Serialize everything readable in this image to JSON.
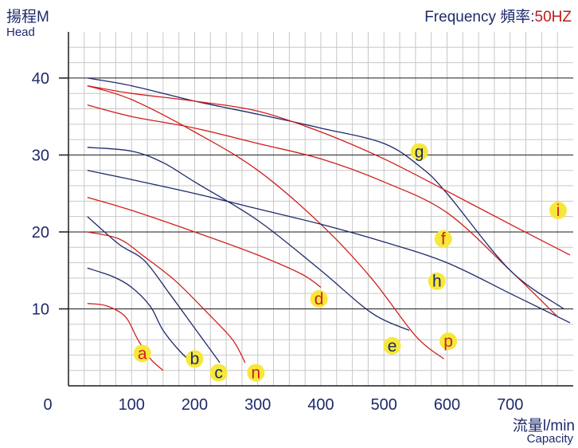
{
  "header": {
    "y_title_cn": "揚程M",
    "y_title_en": "Head",
    "frequency_label": "Frequency 頻率:",
    "frequency_value": "50HZ",
    "x_title_cn": "流量l/min",
    "x_title_en": "Capacity"
  },
  "colors": {
    "navy": "#1e2a6b",
    "red": "#d11f1f",
    "grid": "#c7c7c7",
    "major_grid": "#1b1b1b",
    "label_fill": "#f6e83a"
  },
  "chart_data": {
    "type": "line",
    "title": "",
    "xlabel": "流量l/min Capacity",
    "ylabel": "揚程M Head",
    "xlim": [
      0,
      800
    ],
    "ylim": [
      0,
      46
    ],
    "x_ticks": [
      0,
      100,
      200,
      300,
      400,
      500,
      600,
      700
    ],
    "y_ticks": [
      10,
      20,
      30,
      40
    ],
    "grid": true,
    "minor_grid_step": [
      25,
      2
    ],
    "series": [
      {
        "name": "a",
        "color": "#d11f1f",
        "points": [
          [
            30,
            10.7
          ],
          [
            60,
            10.4
          ],
          [
            90,
            9
          ],
          [
            110,
            6
          ],
          [
            130,
            3.5
          ],
          [
            150,
            2
          ]
        ],
        "label_at": [
          117,
          4.2
        ]
      },
      {
        "name": "b",
        "color": "#1e2a6b",
        "points": [
          [
            30,
            15.3
          ],
          [
            70,
            14.2
          ],
          [
            100,
            12.8
          ],
          [
            130,
            10.3
          ],
          [
            150,
            7.2
          ],
          [
            180,
            4.2
          ],
          [
            205,
            2.5
          ]
        ],
        "label_at": [
          200,
          3.5
        ]
      },
      {
        "name": "c",
        "color": "#1e2a6b",
        "points": [
          [
            30,
            22
          ],
          [
            80,
            18.4
          ],
          [
            120,
            16.3
          ],
          [
            160,
            12
          ],
          [
            200,
            7.5
          ],
          [
            240,
            3
          ]
        ],
        "label_at": [
          238,
          1.7
        ]
      },
      {
        "name": "n",
        "color": "#d11f1f",
        "points": [
          [
            30,
            20
          ],
          [
            80,
            19.1
          ],
          [
            120,
            16.8
          ],
          [
            170,
            13.6
          ],
          [
            220,
            9.5
          ],
          [
            260,
            6
          ],
          [
            280,
            3
          ]
        ],
        "label_at": [
          297,
          1.7
        ]
      },
      {
        "name": "d",
        "color": "#d11f1f",
        "points": [
          [
            30,
            24.5
          ],
          [
            100,
            22.8
          ],
          [
            200,
            20
          ],
          [
            300,
            17
          ],
          [
            370,
            14.5
          ],
          [
            400,
            12.8
          ]
        ],
        "label_at": [
          397,
          11.3
        ]
      },
      {
        "name": "e",
        "color": "#1e2a6b",
        "points": [
          [
            30,
            31
          ],
          [
            100,
            30.5
          ],
          [
            150,
            29
          ],
          [
            200,
            26.5
          ],
          [
            300,
            21.5
          ],
          [
            400,
            15
          ],
          [
            480,
            9.5
          ],
          [
            540,
            7.2
          ]
        ],
        "label_at": [
          513,
          5.2
        ]
      },
      {
        "name": "p",
        "color": "#d11f1f",
        "points": [
          [
            30,
            39
          ],
          [
            100,
            37.2
          ],
          [
            200,
            33
          ],
          [
            300,
            28
          ],
          [
            400,
            21
          ],
          [
            480,
            14
          ],
          [
            550,
            6.5
          ],
          [
            595,
            3.5
          ]
        ],
        "label_at": [
          602,
          5.8
        ]
      },
      {
        "name": "h",
        "color": "#1e2a6b",
        "points": [
          [
            30,
            28
          ],
          [
            100,
            26.8
          ],
          [
            200,
            25
          ],
          [
            300,
            23
          ],
          [
            400,
            21
          ],
          [
            500,
            18.7
          ],
          [
            600,
            16
          ],
          [
            700,
            12
          ],
          [
            795,
            8.2
          ]
        ],
        "label_at": [
          584,
          13.6
        ]
      },
      {
        "name": "f",
        "color": "#d11f1f",
        "points": [
          [
            30,
            36.5
          ],
          [
            100,
            35
          ],
          [
            200,
            33.5
          ],
          [
            300,
            31.5
          ],
          [
            400,
            29.5
          ],
          [
            500,
            26.5
          ],
          [
            600,
            22.5
          ],
          [
            700,
            15
          ],
          [
            775,
            9
          ]
        ],
        "label_at": [
          594,
          19.1
        ]
      },
      {
        "name": "g",
        "color": "#1e2a6b",
        "points": [
          [
            30,
            40
          ],
          [
            100,
            39
          ],
          [
            200,
            37
          ],
          [
            300,
            35.3
          ],
          [
            400,
            33.5
          ],
          [
            500,
            31.5
          ],
          [
            560,
            28.3
          ],
          [
            600,
            25
          ],
          [
            700,
            15
          ],
          [
            785,
            10
          ]
        ],
        "label_at": [
          556,
          30.4
        ]
      },
      {
        "name": "i",
        "color": "#d11f1f",
        "points": [
          [
            30,
            39
          ],
          [
            100,
            38
          ],
          [
            200,
            37
          ],
          [
            300,
            35.7
          ],
          [
            400,
            33
          ],
          [
            500,
            29.5
          ],
          [
            600,
            25.3
          ],
          [
            700,
            21
          ],
          [
            795,
            17
          ]
        ],
        "label_at": [
          776,
          22.8
        ]
      }
    ]
  }
}
